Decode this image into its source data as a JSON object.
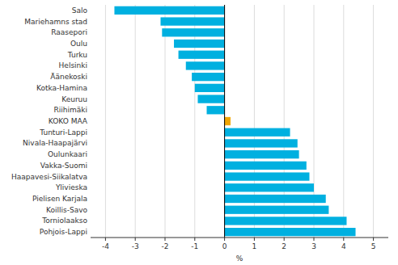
{
  "chart_data": {
    "type": "bar",
    "orientation": "horizontal",
    "categories": [
      "Pohjois-Lappi",
      "Torniolaakso",
      "Koillis-Savo",
      "Pielisen Karjala",
      "Ylivieska",
      "Haapavesi-Siikalatva",
      "Vakka-Suomi",
      "Oulunkaari",
      "Nivala-Haapajärvi",
      "Tunturi-Lappi",
      "KOKO MAA",
      "Riihimäki",
      "Keuruu",
      "Kotka-Hamina",
      "Äänekoski",
      "Helsinki",
      "Turku",
      "Oulu",
      "Raasepori",
      "Mariehamns stad",
      "Salo"
    ],
    "values": [
      4.4,
      4.1,
      3.5,
      3.4,
      3.0,
      2.85,
      2.75,
      2.5,
      2.45,
      2.2,
      0.2,
      -0.6,
      -0.9,
      -1.0,
      -1.1,
      -1.3,
      -1.55,
      -1.7,
      -2.1,
      -2.15,
      -3.7
    ],
    "colors": [
      "#00b0e0",
      "#00b0e0",
      "#00b0e0",
      "#00b0e0",
      "#00b0e0",
      "#00b0e0",
      "#00b0e0",
      "#00b0e0",
      "#00b0e0",
      "#00b0e0",
      "#f0a500",
      "#00b0e0",
      "#00b0e0",
      "#00b0e0",
      "#00b0e0",
      "#00b0e0",
      "#00b0e0",
      "#00b0e0",
      "#00b0e0",
      "#00b0e0",
      "#00b0e0"
    ],
    "xlim": [
      -4.5,
      5.5
    ],
    "xticks": [
      -4,
      -3,
      -2,
      -1,
      0,
      1,
      2,
      3,
      4,
      5
    ],
    "xlabel": "%",
    "grid": true
  }
}
